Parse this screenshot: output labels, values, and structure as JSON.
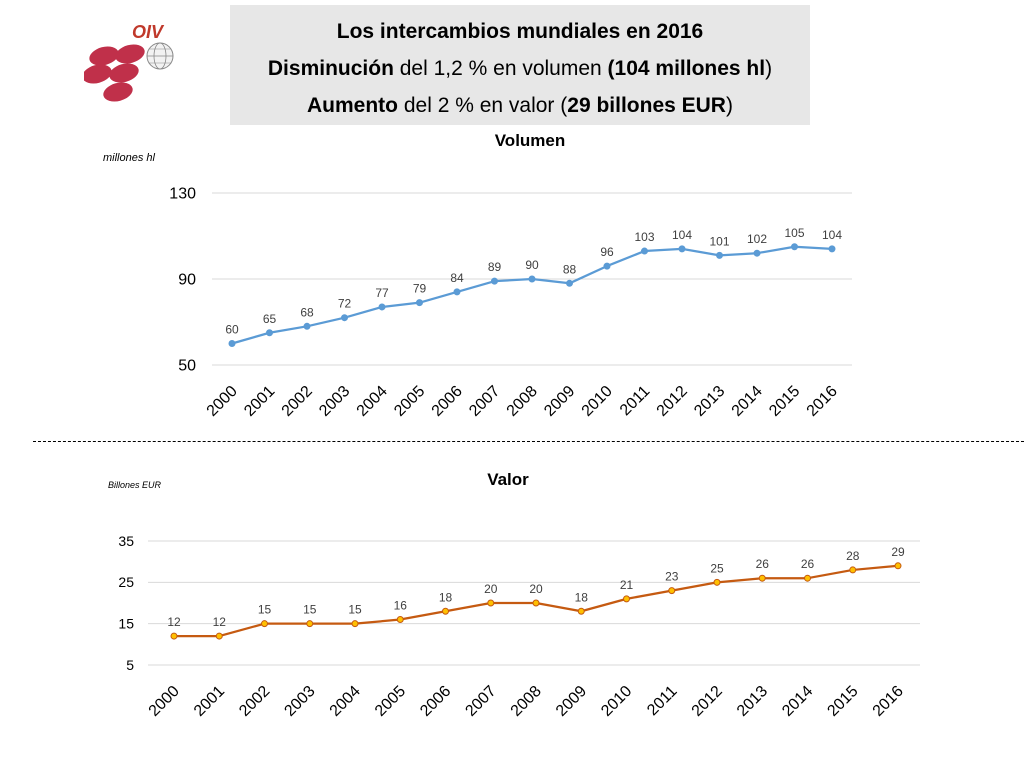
{
  "logo": {
    "text": "OIV"
  },
  "header": {
    "line1": "Los intercambios mundiales en 2016",
    "line2_bold_a": "Disminución",
    "line2_text_a": " del 1,2 % en volumen ",
    "line2_bold_b": "(104 millones hl",
    "line2_text_b": ")",
    "line3_bold_a": "Aumento",
    "line3_text_a": " del 2 % en valor (",
    "line3_bold_b": "29 billones EUR",
    "line3_text_b": ")"
  },
  "chart_data": [
    {
      "type": "line",
      "title": "Volumen",
      "ylabel": "millones hl",
      "color": "#5b9bd5",
      "ylim": [
        50,
        130
      ],
      "yticks": [
        50,
        90,
        130
      ],
      "x": [
        "2000",
        "2001",
        "2002",
        "2003",
        "2004",
        "2005",
        "2006",
        "2007",
        "2008",
        "2009",
        "2010",
        "2011",
        "2012",
        "2013",
        "2014",
        "2015",
        "2016"
      ],
      "values": [
        60,
        65,
        68,
        72,
        77,
        79,
        84,
        89,
        90,
        88,
        96,
        103,
        104,
        101,
        102,
        105,
        104
      ],
      "grid": true,
      "legend": "none"
    },
    {
      "type": "line",
      "title": "Valor",
      "ylabel": "Billones EUR",
      "color": "#c55a11",
      "marker_fill": "#ffc000",
      "ylim": [
        5,
        35
      ],
      "yticks": [
        5,
        15,
        25,
        35
      ],
      "x": [
        "2000",
        "2001",
        "2002",
        "2003",
        "2004",
        "2005",
        "2006",
        "2007",
        "2008",
        "2009",
        "2010",
        "2011",
        "2012",
        "2013",
        "2014",
        "2015",
        "2016"
      ],
      "values": [
        12,
        12,
        15,
        15,
        15,
        16,
        18,
        20,
        20,
        18,
        21,
        23,
        25,
        26,
        26,
        28,
        29
      ],
      "grid": true,
      "legend": "none"
    }
  ]
}
